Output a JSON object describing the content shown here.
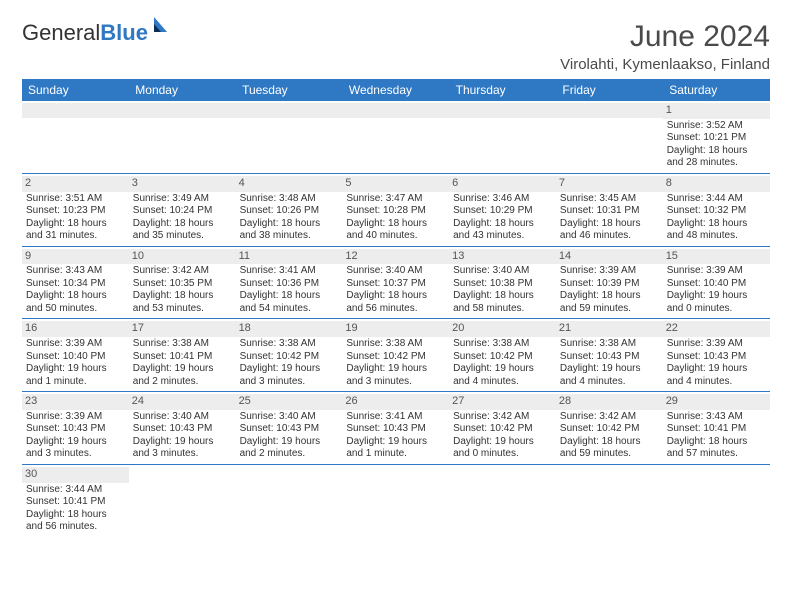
{
  "logo": {
    "text1": "General",
    "text2": "Blue"
  },
  "title": "June 2024",
  "location": "Virolahti, Kymenlaakso, Finland",
  "colors": {
    "header_bg": "#2f78c4",
    "header_text": "#ffffff",
    "daynum_bg": "#ededed",
    "border": "#2f78c4"
  },
  "weekdays": [
    "Sunday",
    "Monday",
    "Tuesday",
    "Wednesday",
    "Thursday",
    "Friday",
    "Saturday"
  ],
  "weeks": [
    [
      null,
      null,
      null,
      null,
      null,
      null,
      {
        "d": "1",
        "l1": "Sunrise: 3:52 AM",
        "l2": "Sunset: 10:21 PM",
        "l3": "Daylight: 18 hours",
        "l4": "and 28 minutes."
      }
    ],
    [
      {
        "d": "2",
        "l1": "Sunrise: 3:51 AM",
        "l2": "Sunset: 10:23 PM",
        "l3": "Daylight: 18 hours",
        "l4": "and 31 minutes."
      },
      {
        "d": "3",
        "l1": "Sunrise: 3:49 AM",
        "l2": "Sunset: 10:24 PM",
        "l3": "Daylight: 18 hours",
        "l4": "and 35 minutes."
      },
      {
        "d": "4",
        "l1": "Sunrise: 3:48 AM",
        "l2": "Sunset: 10:26 PM",
        "l3": "Daylight: 18 hours",
        "l4": "and 38 minutes."
      },
      {
        "d": "5",
        "l1": "Sunrise: 3:47 AM",
        "l2": "Sunset: 10:28 PM",
        "l3": "Daylight: 18 hours",
        "l4": "and 40 minutes."
      },
      {
        "d": "6",
        "l1": "Sunrise: 3:46 AM",
        "l2": "Sunset: 10:29 PM",
        "l3": "Daylight: 18 hours",
        "l4": "and 43 minutes."
      },
      {
        "d": "7",
        "l1": "Sunrise: 3:45 AM",
        "l2": "Sunset: 10:31 PM",
        "l3": "Daylight: 18 hours",
        "l4": "and 46 minutes."
      },
      {
        "d": "8",
        "l1": "Sunrise: 3:44 AM",
        "l2": "Sunset: 10:32 PM",
        "l3": "Daylight: 18 hours",
        "l4": "and 48 minutes."
      }
    ],
    [
      {
        "d": "9",
        "l1": "Sunrise: 3:43 AM",
        "l2": "Sunset: 10:34 PM",
        "l3": "Daylight: 18 hours",
        "l4": "and 50 minutes."
      },
      {
        "d": "10",
        "l1": "Sunrise: 3:42 AM",
        "l2": "Sunset: 10:35 PM",
        "l3": "Daylight: 18 hours",
        "l4": "and 53 minutes."
      },
      {
        "d": "11",
        "l1": "Sunrise: 3:41 AM",
        "l2": "Sunset: 10:36 PM",
        "l3": "Daylight: 18 hours",
        "l4": "and 54 minutes."
      },
      {
        "d": "12",
        "l1": "Sunrise: 3:40 AM",
        "l2": "Sunset: 10:37 PM",
        "l3": "Daylight: 18 hours",
        "l4": "and 56 minutes."
      },
      {
        "d": "13",
        "l1": "Sunrise: 3:40 AM",
        "l2": "Sunset: 10:38 PM",
        "l3": "Daylight: 18 hours",
        "l4": "and 58 minutes."
      },
      {
        "d": "14",
        "l1": "Sunrise: 3:39 AM",
        "l2": "Sunset: 10:39 PM",
        "l3": "Daylight: 18 hours",
        "l4": "and 59 minutes."
      },
      {
        "d": "15",
        "l1": "Sunrise: 3:39 AM",
        "l2": "Sunset: 10:40 PM",
        "l3": "Daylight: 19 hours",
        "l4": "and 0 minutes."
      }
    ],
    [
      {
        "d": "16",
        "l1": "Sunrise: 3:39 AM",
        "l2": "Sunset: 10:40 PM",
        "l3": "Daylight: 19 hours",
        "l4": "and 1 minute."
      },
      {
        "d": "17",
        "l1": "Sunrise: 3:38 AM",
        "l2": "Sunset: 10:41 PM",
        "l3": "Daylight: 19 hours",
        "l4": "and 2 minutes."
      },
      {
        "d": "18",
        "l1": "Sunrise: 3:38 AM",
        "l2": "Sunset: 10:42 PM",
        "l3": "Daylight: 19 hours",
        "l4": "and 3 minutes."
      },
      {
        "d": "19",
        "l1": "Sunrise: 3:38 AM",
        "l2": "Sunset: 10:42 PM",
        "l3": "Daylight: 19 hours",
        "l4": "and 3 minutes."
      },
      {
        "d": "20",
        "l1": "Sunrise: 3:38 AM",
        "l2": "Sunset: 10:42 PM",
        "l3": "Daylight: 19 hours",
        "l4": "and 4 minutes."
      },
      {
        "d": "21",
        "l1": "Sunrise: 3:38 AM",
        "l2": "Sunset: 10:43 PM",
        "l3": "Daylight: 19 hours",
        "l4": "and 4 minutes."
      },
      {
        "d": "22",
        "l1": "Sunrise: 3:39 AM",
        "l2": "Sunset: 10:43 PM",
        "l3": "Daylight: 19 hours",
        "l4": "and 4 minutes."
      }
    ],
    [
      {
        "d": "23",
        "l1": "Sunrise: 3:39 AM",
        "l2": "Sunset: 10:43 PM",
        "l3": "Daylight: 19 hours",
        "l4": "and 3 minutes."
      },
      {
        "d": "24",
        "l1": "Sunrise: 3:40 AM",
        "l2": "Sunset: 10:43 PM",
        "l3": "Daylight: 19 hours",
        "l4": "and 3 minutes."
      },
      {
        "d": "25",
        "l1": "Sunrise: 3:40 AM",
        "l2": "Sunset: 10:43 PM",
        "l3": "Daylight: 19 hours",
        "l4": "and 2 minutes."
      },
      {
        "d": "26",
        "l1": "Sunrise: 3:41 AM",
        "l2": "Sunset: 10:43 PM",
        "l3": "Daylight: 19 hours",
        "l4": "and 1 minute."
      },
      {
        "d": "27",
        "l1": "Sunrise: 3:42 AM",
        "l2": "Sunset: 10:42 PM",
        "l3": "Daylight: 19 hours",
        "l4": "and 0 minutes."
      },
      {
        "d": "28",
        "l1": "Sunrise: 3:42 AM",
        "l2": "Sunset: 10:42 PM",
        "l3": "Daylight: 18 hours",
        "l4": "and 59 minutes."
      },
      {
        "d": "29",
        "l1": "Sunrise: 3:43 AM",
        "l2": "Sunset: 10:41 PM",
        "l3": "Daylight: 18 hours",
        "l4": "and 57 minutes."
      }
    ],
    [
      {
        "d": "30",
        "l1": "Sunrise: 3:44 AM",
        "l2": "Sunset: 10:41 PM",
        "l3": "Daylight: 18 hours",
        "l4": "and 56 minutes."
      },
      null,
      null,
      null,
      null,
      null,
      null
    ]
  ]
}
